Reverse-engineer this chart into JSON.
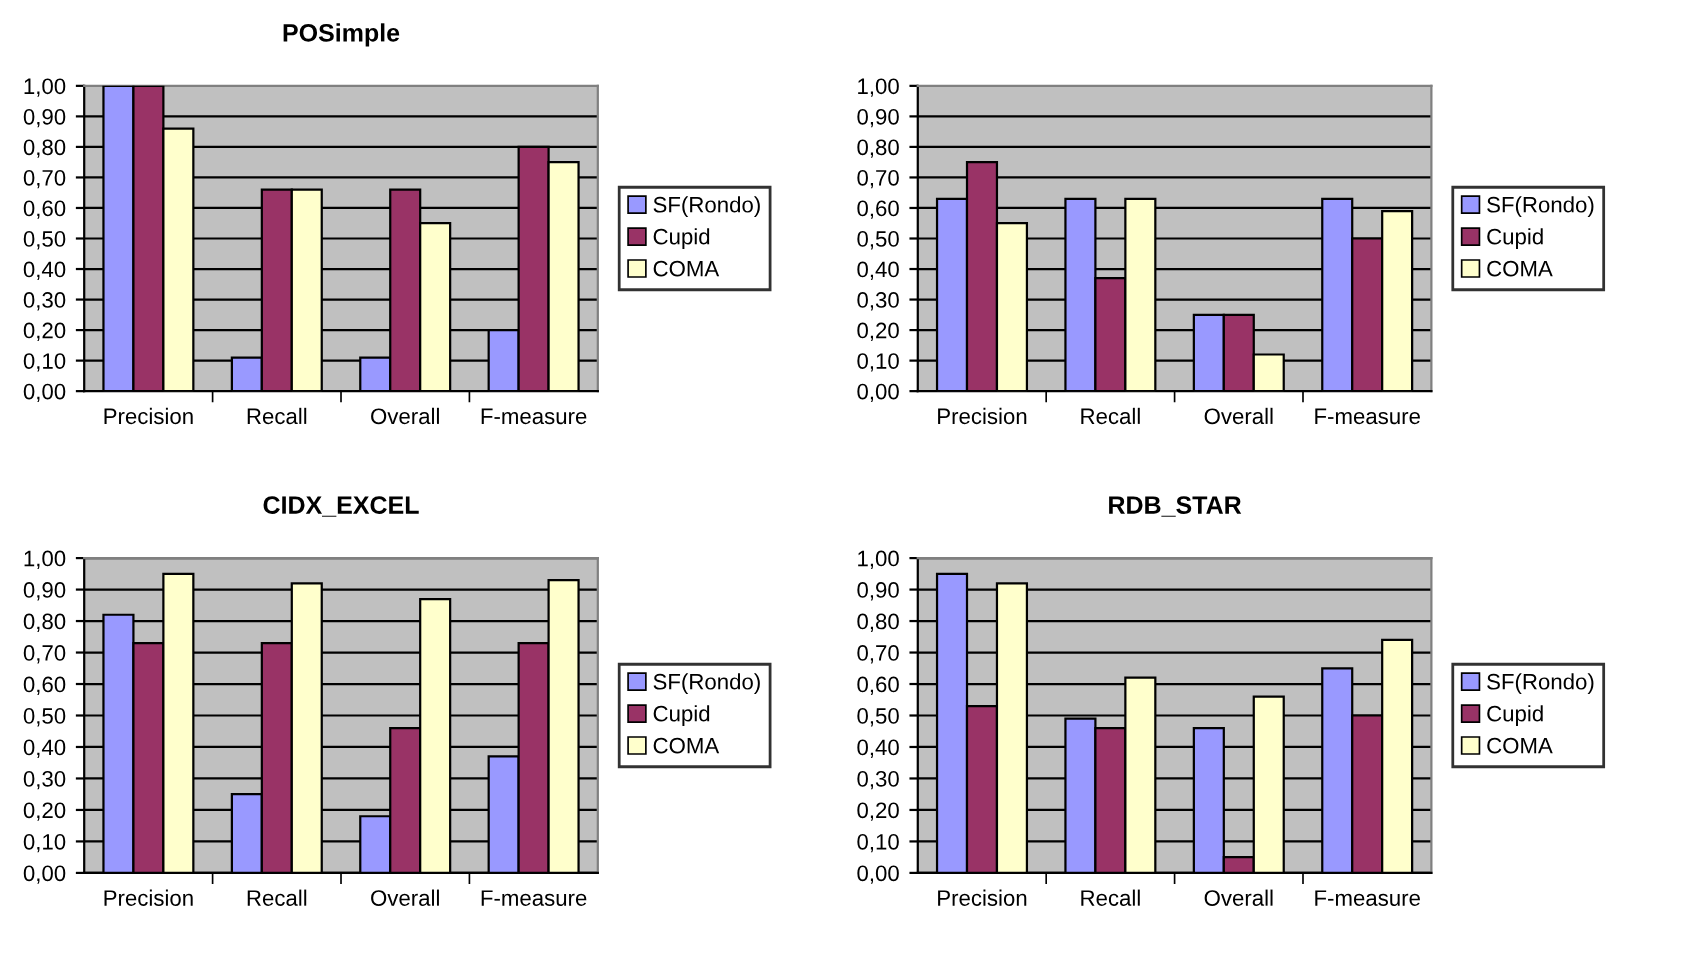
{
  "chart_data": [
    {
      "type": "bar",
      "title": "POSimple",
      "categories": [
        "Precision",
        "Recall",
        "Overall",
        "F-measure"
      ],
      "series": [
        {
          "name": "SF(Rondo)",
          "color": "#9999ff",
          "values": [
            1.0,
            0.11,
            0.11,
            0.2
          ]
        },
        {
          "name": "Cupid",
          "color": "#993366",
          "values": [
            1.0,
            0.66,
            0.66,
            0.8
          ]
        },
        {
          "name": "COMA",
          "color": "#ffffcc",
          "values": [
            0.86,
            0.66,
            0.55,
            0.75
          ]
        }
      ],
      "ylim": [
        0,
        1
      ],
      "yticks": [
        {
          "value": 0,
          "label": "0,00"
        },
        {
          "value": 0.1,
          "label": "0,10"
        },
        {
          "value": 0.2,
          "label": "0,20"
        },
        {
          "value": 0.3,
          "label": "0,30"
        },
        {
          "value": 0.4,
          "label": "0,40"
        },
        {
          "value": 0.5,
          "label": "0,50"
        },
        {
          "value": 0.6,
          "label": "0,60"
        },
        {
          "value": 0.7,
          "label": "0,70"
        },
        {
          "value": 0.8,
          "label": "0,80"
        },
        {
          "value": 0.9,
          "label": "0,90"
        },
        {
          "value": 1,
          "label": "1,00"
        }
      ],
      "grid": "y",
      "legend": "right"
    },
    {
      "type": "bar",
      "categories": [
        "Precision",
        "Recall",
        "Overall",
        "F-measure"
      ],
      "series": [
        {
          "name": "SF(Rondo)",
          "color": "#9999ff",
          "values": [
            0.63,
            0.63,
            0.25,
            0.63
          ]
        },
        {
          "name": "Cupid",
          "color": "#993366",
          "values": [
            0.75,
            0.37,
            0.25,
            0.5
          ]
        },
        {
          "name": "COMA",
          "color": "#ffffcc",
          "values": [
            0.55,
            0.63,
            0.12,
            0.59
          ]
        }
      ],
      "ylim": [
        0,
        1
      ],
      "yticks": [
        {
          "value": 0,
          "label": "0,00"
        },
        {
          "value": 0.1,
          "label": "0,10"
        },
        {
          "value": 0.2,
          "label": "0,20"
        },
        {
          "value": 0.3,
          "label": "0,30"
        },
        {
          "value": 0.4,
          "label": "0,40"
        },
        {
          "value": 0.5,
          "label": "0,50"
        },
        {
          "value": 0.6,
          "label": "0,60"
        },
        {
          "value": 0.7,
          "label": "0,70"
        },
        {
          "value": 0.8,
          "label": "0,80"
        },
        {
          "value": 0.9,
          "label": "0,90"
        },
        {
          "value": 1,
          "label": "1,00"
        }
      ],
      "grid": "y",
      "legend": "right"
    },
    {
      "type": "bar",
      "title": "CIDX_EXCEL",
      "categories": [
        "Precision",
        "Recall",
        "Overall",
        "F-measure"
      ],
      "series": [
        {
          "name": "SF(Rondo)",
          "color": "#9999ff",
          "values": [
            0.82,
            0.25,
            0.18,
            0.37
          ]
        },
        {
          "name": "Cupid",
          "color": "#993366",
          "values": [
            0.73,
            0.73,
            0.46,
            0.73
          ]
        },
        {
          "name": "COMA",
          "color": "#ffffcc",
          "values": [
            0.95,
            0.92,
            0.87,
            0.93
          ]
        }
      ],
      "ylim": [
        0,
        1
      ],
      "yticks": [
        {
          "value": 0,
          "label": "0,00"
        },
        {
          "value": 0.1,
          "label": "0,10"
        },
        {
          "value": 0.2,
          "label": "0,20"
        },
        {
          "value": 0.3,
          "label": "0,30"
        },
        {
          "value": 0.4,
          "label": "0,40"
        },
        {
          "value": 0.5,
          "label": "0,50"
        },
        {
          "value": 0.6,
          "label": "0,60"
        },
        {
          "value": 0.7,
          "label": "0,70"
        },
        {
          "value": 0.8,
          "label": "0,80"
        },
        {
          "value": 0.9,
          "label": "0,90"
        },
        {
          "value": 1,
          "label": "1,00"
        }
      ],
      "grid": "y",
      "legend": "right"
    },
    {
      "type": "bar",
      "title": "RDB_STAR",
      "categories": [
        "Precision",
        "Recall",
        "Overall",
        "F-measure"
      ],
      "series": [
        {
          "name": "SF(Rondo)",
          "color": "#9999ff",
          "values": [
            0.95,
            0.49,
            0.46,
            0.65
          ]
        },
        {
          "name": "Cupid",
          "color": "#993366",
          "values": [
            0.53,
            0.46,
            0.05,
            0.5
          ]
        },
        {
          "name": "COMA",
          "color": "#ffffcc",
          "values": [
            0.92,
            0.62,
            0.56,
            0.74
          ]
        }
      ],
      "ylim": [
        0,
        1
      ],
      "yticks": [
        {
          "value": 0,
          "label": "0,00"
        },
        {
          "value": 0.1,
          "label": "0,10"
        },
        {
          "value": 0.2,
          "label": "0,20"
        },
        {
          "value": 0.3,
          "label": "0,30"
        },
        {
          "value": 0.4,
          "label": "0,40"
        },
        {
          "value": 0.5,
          "label": "0,50"
        },
        {
          "value": 0.6,
          "label": "0,60"
        },
        {
          "value": 0.7,
          "label": "0,70"
        },
        {
          "value": 0.8,
          "label": "0,80"
        },
        {
          "value": 0.9,
          "label": "0,90"
        },
        {
          "value": 1,
          "label": "1,00"
        }
      ],
      "grid": "y",
      "legend": "right"
    }
  ]
}
